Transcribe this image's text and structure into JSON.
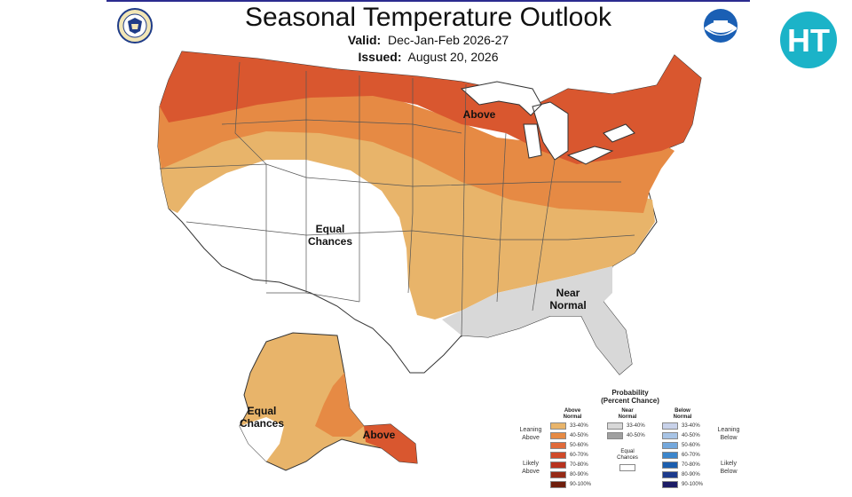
{
  "header": {
    "title": "Seasonal Temperature Outlook",
    "valid_label": "Valid:",
    "valid_value": "Dec-Jan-Feb 2026-27",
    "issued_label": "Issued:",
    "issued_value": "August 20, 2026"
  },
  "logos": {
    "left": "doc-seal-icon",
    "right": "noaa-logo-icon",
    "brand": "HT",
    "brand_color": "#1bb3c8"
  },
  "map_labels": {
    "above_north": "Above",
    "equal_line1": "Equal",
    "equal_line2": "Chances",
    "near_line1": "Near",
    "near_line2": "Normal",
    "ak_equal_line1": "Equal",
    "ak_equal_line2": "Chances",
    "ak_above": "Above"
  },
  "legend": {
    "title_line1": "Probability",
    "title_line2": "(Percent Chance)",
    "above_head_1": "Above",
    "above_head_2": "Normal",
    "near_head_1": "Near",
    "near_head_2": "Normal",
    "below_head_1": "Below",
    "below_head_2": "Normal",
    "leaning_above_1": "Leaning",
    "leaning_above_2": "Above",
    "likely_above_1": "Likely",
    "likely_above_2": "Above",
    "leaning_below_1": "Leaning",
    "leaning_below_2": "Below",
    "likely_below_1": "Likely",
    "likely_below_2": "Below",
    "equal_1": "Equal",
    "equal_2": "Chances",
    "above_bins": [
      {
        "label": "33-40%",
        "color": "#e8b46a"
      },
      {
        "label": "40-50%",
        "color": "#e68a44"
      },
      {
        "label": "50-60%",
        "color": "#e06a3a"
      },
      {
        "label": "60-70%",
        "color": "#d04a2a"
      },
      {
        "label": "70-80%",
        "color": "#b8321e"
      },
      {
        "label": "80-90%",
        "color": "#962a16"
      },
      {
        "label": "90-100%",
        "color": "#6e1e0c"
      }
    ],
    "near_bins": [
      {
        "label": "33-40%",
        "color": "#d8d8d8"
      },
      {
        "label": "40-50%",
        "color": "#a0a0a0"
      }
    ],
    "below_bins": [
      {
        "label": "33-40%",
        "color": "#c8d2ea"
      },
      {
        "label": "40-50%",
        "color": "#a8c4e6"
      },
      {
        "label": "50-60%",
        "color": "#74a8dc"
      },
      {
        "label": "60-70%",
        "color": "#3c86cc"
      },
      {
        "label": "70-80%",
        "color": "#1c5eae"
      },
      {
        "label": "80-90%",
        "color": "#1c3a8c"
      },
      {
        "label": "90-100%",
        "color": "#1c1c66"
      }
    ]
  }
}
